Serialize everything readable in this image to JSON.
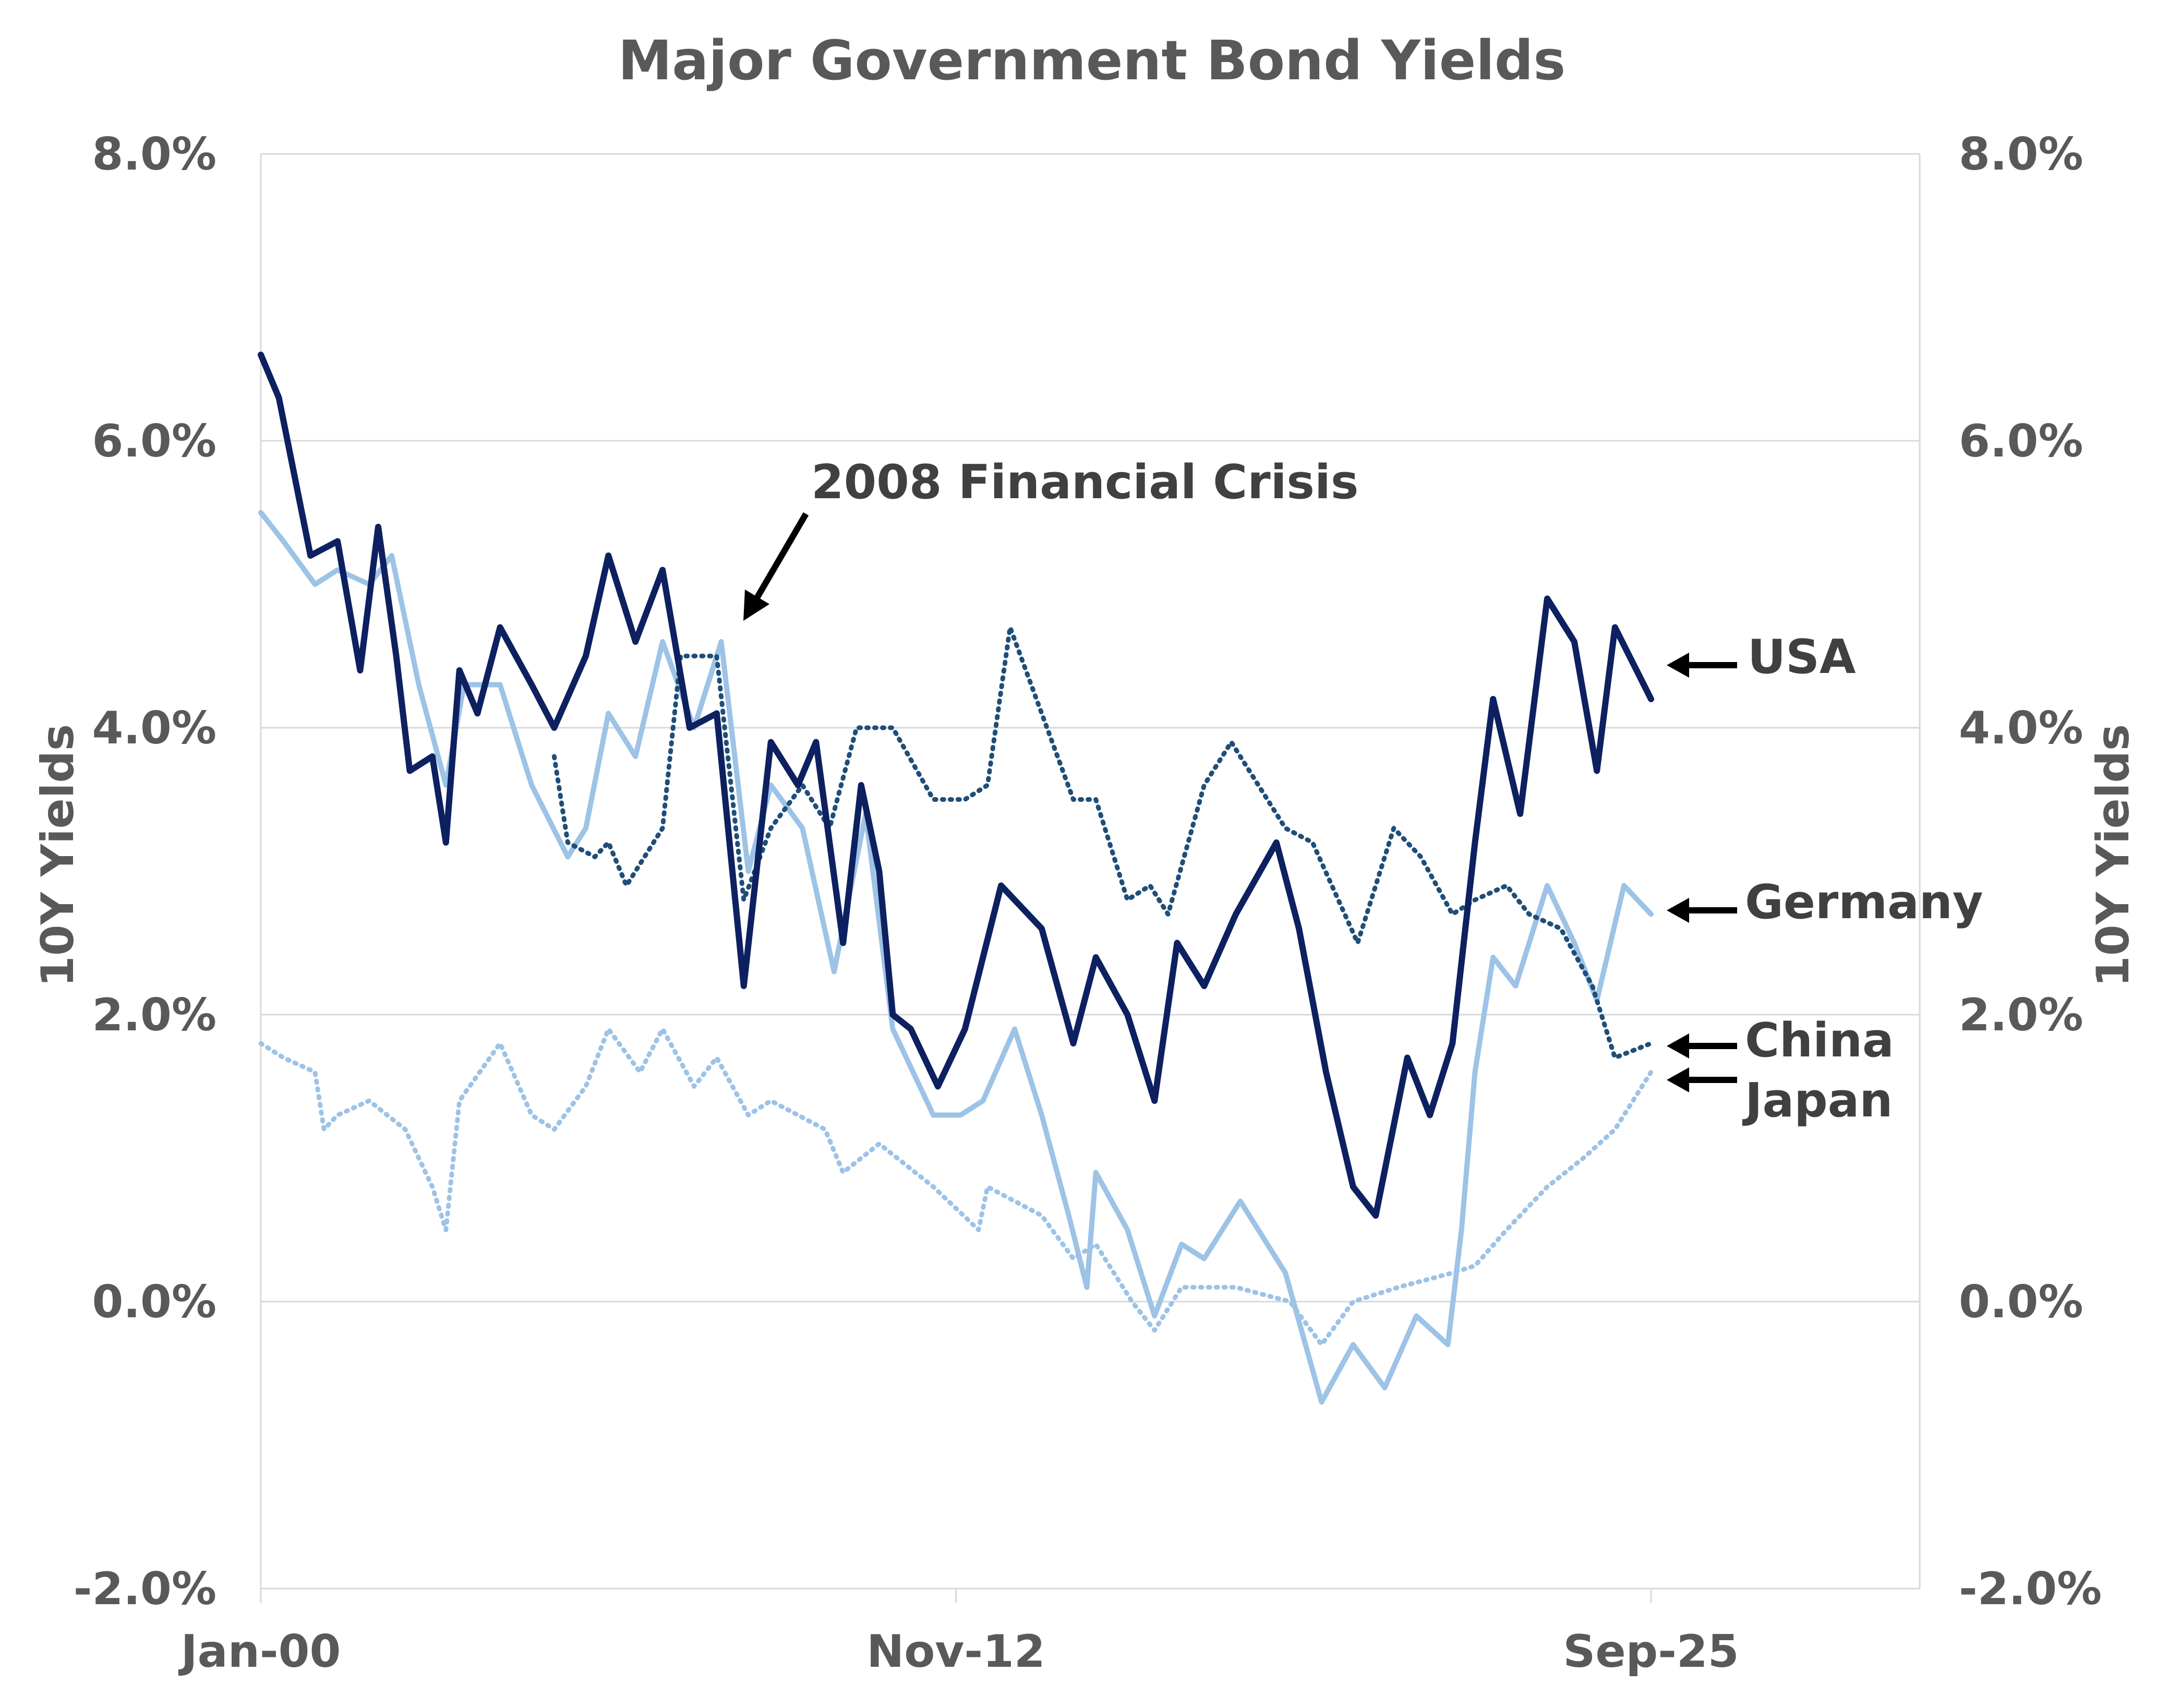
{
  "chart_data": {
    "type": "line",
    "title": "Major Government Bond Yields",
    "ylabel_left": "10Y Yields",
    "ylabel_right": "10Y Yields",
    "ylim": [
      -2.0,
      8.0
    ],
    "y_ticks": [
      "-2.0%",
      "0.0%",
      "2.0%",
      "4.0%",
      "6.0%",
      "8.0%"
    ],
    "x_ticks": [
      "Jan-00",
      "Nov-12",
      "Sep-25"
    ],
    "grid": true,
    "annotation": "2008 Financial Crisis",
    "series": [
      {
        "name": "USA",
        "color": "#0d2060",
        "style": "solid",
        "points": [
          [
            "2000-01",
            6.6
          ],
          [
            "2000-05",
            6.3
          ],
          [
            "2000-12",
            5.2
          ],
          [
            "2001-06",
            5.3
          ],
          [
            "2001-11",
            4.4
          ],
          [
            "2002-03",
            5.4
          ],
          [
            "2002-07",
            4.5
          ],
          [
            "2002-10",
            3.7
          ],
          [
            "2003-03",
            3.8
          ],
          [
            "2003-06",
            3.2
          ],
          [
            "2003-09",
            4.4
          ],
          [
            "2004-01",
            4.1
          ],
          [
            "2004-06",
            4.7
          ],
          [
            "2005-01",
            4.3
          ],
          [
            "2005-06",
            4.0
          ],
          [
            "2006-01",
            4.5
          ],
          [
            "2006-06",
            5.2
          ],
          [
            "2006-12",
            4.6
          ],
          [
            "2007-06",
            5.1
          ],
          [
            "2007-12",
            4.0
          ],
          [
            "2008-06",
            4.1
          ],
          [
            "2008-12",
            2.2
          ],
          [
            "2009-06",
            3.9
          ],
          [
            "2009-12",
            3.6
          ],
          [
            "2010-04",
            3.9
          ],
          [
            "2010-10",
            2.5
          ],
          [
            "2011-02",
            3.6
          ],
          [
            "2011-06",
            3.0
          ],
          [
            "2011-09",
            2.0
          ],
          [
            "2012-01",
            1.9
          ],
          [
            "2012-07",
            1.5
          ],
          [
            "2013-01",
            1.9
          ],
          [
            "2013-09",
            2.9
          ],
          [
            "2014-06",
            2.6
          ],
          [
            "2015-01",
            1.8
          ],
          [
            "2015-06",
            2.4
          ],
          [
            "2016-01",
            2.0
          ],
          [
            "2016-07",
            1.4
          ],
          [
            "2016-12",
            2.5
          ],
          [
            "2017-06",
            2.2
          ],
          [
            "2018-01",
            2.7
          ],
          [
            "2018-10",
            3.2
          ],
          [
            "2019-03",
            2.6
          ],
          [
            "2019-09",
            1.6
          ],
          [
            "2020-03",
            0.8
          ],
          [
            "2020-08",
            0.6
          ],
          [
            "2021-03",
            1.7
          ],
          [
            "2021-08",
            1.3
          ],
          [
            "2022-01",
            1.8
          ],
          [
            "2022-06",
            3.2
          ],
          [
            "2022-10",
            4.2
          ],
          [
            "2023-04",
            3.4
          ],
          [
            "2023-10",
            4.9
          ],
          [
            "2024-04",
            4.6
          ],
          [
            "2024-09",
            3.7
          ],
          [
            "2025-01",
            4.7
          ],
          [
            "2025-09",
            4.2
          ]
        ]
      },
      {
        "name": "Germany",
        "color": "#9dc3e6",
        "style": "solid",
        "points": [
          [
            "2000-01",
            5.5
          ],
          [
            "2000-06",
            5.3
          ],
          [
            "2001-01",
            5.0
          ],
          [
            "2001-06",
            5.1
          ],
          [
            "2002-01",
            5.0
          ],
          [
            "2002-06",
            5.2
          ],
          [
            "2002-12",
            4.3
          ],
          [
            "2003-06",
            3.6
          ],
          [
            "2003-10",
            4.3
          ],
          [
            "2004-06",
            4.3
          ],
          [
            "2005-01",
            3.6
          ],
          [
            "2005-09",
            3.1
          ],
          [
            "2006-01",
            3.3
          ],
          [
            "2006-06",
            4.1
          ],
          [
            "2006-12",
            3.8
          ],
          [
            "2007-06",
            4.6
          ],
          [
            "2008-01",
            4.0
          ],
          [
            "2008-07",
            4.6
          ],
          [
            "2009-01",
            3.0
          ],
          [
            "2009-06",
            3.6
          ],
          [
            "2010-01",
            3.3
          ],
          [
            "2010-08",
            2.3
          ],
          [
            "2011-03",
            3.4
          ],
          [
            "2011-09",
            1.9
          ],
          [
            "2012-06",
            1.3
          ],
          [
            "2012-12",
            1.3
          ],
          [
            "2013-05",
            1.4
          ],
          [
            "2013-12",
            1.9
          ],
          [
            "2014-06",
            1.3
          ],
          [
            "2014-12",
            0.6
          ],
          [
            "2015-04",
            0.1
          ],
          [
            "2015-06",
            0.9
          ],
          [
            "2016-01",
            0.5
          ],
          [
            "2016-07",
            -0.1
          ],
          [
            "2017-01",
            0.4
          ],
          [
            "2017-06",
            0.3
          ],
          [
            "2018-02",
            0.7
          ],
          [
            "2018-12",
            0.2
          ],
          [
            "2019-08",
            -0.7
          ],
          [
            "2020-03",
            -0.3
          ],
          [
            "2020-10",
            -0.6
          ],
          [
            "2021-05",
            -0.1
          ],
          [
            "2021-12",
            -0.3
          ],
          [
            "2022-03",
            0.5
          ],
          [
            "2022-06",
            1.6
          ],
          [
            "2022-10",
            2.4
          ],
          [
            "2023-03",
            2.2
          ],
          [
            "2023-10",
            2.9
          ],
          [
            "2024-04",
            2.5
          ],
          [
            "2024-09",
            2.1
          ],
          [
            "2025-03",
            2.9
          ],
          [
            "2025-09",
            2.7
          ]
        ]
      },
      {
        "name": "China",
        "color": "#1f4e79",
        "style": "dotted",
        "points": [
          [
            "2005-06",
            3.8
          ],
          [
            "2005-09",
            3.2
          ],
          [
            "2006-03",
            3.1
          ],
          [
            "2006-06",
            3.2
          ],
          [
            "2006-10",
            2.9
          ],
          [
            "2007-06",
            3.3
          ],
          [
            "2007-10",
            4.5
          ],
          [
            "2008-06",
            4.5
          ],
          [
            "2008-12",
            2.8
          ],
          [
            "2009-06",
            3.3
          ],
          [
            "2010-01",
            3.6
          ],
          [
            "2010-07",
            3.3
          ],
          [
            "2011-01",
            4.0
          ],
          [
            "2011-09",
            4.0
          ],
          [
            "2012-06",
            3.5
          ],
          [
            "2013-01",
            3.5
          ],
          [
            "2013-06",
            3.6
          ],
          [
            "2013-11",
            4.7
          ],
          [
            "2014-06",
            4.1
          ],
          [
            "2015-01",
            3.5
          ],
          [
            "2015-06",
            3.5
          ],
          [
            "2016-01",
            2.8
          ],
          [
            "2016-06",
            2.9
          ],
          [
            "2016-10",
            2.7
          ],
          [
            "2017-06",
            3.6
          ],
          [
            "2017-12",
            3.9
          ],
          [
            "2018-06",
            3.6
          ],
          [
            "2018-12",
            3.3
          ],
          [
            "2019-06",
            3.2
          ],
          [
            "2020-04",
            2.5
          ],
          [
            "2020-12",
            3.3
          ],
          [
            "2021-06",
            3.1
          ],
          [
            "2022-01",
            2.7
          ],
          [
            "2022-06",
            2.8
          ],
          [
            "2023-01",
            2.9
          ],
          [
            "2023-06",
            2.7
          ],
          [
            "2024-01",
            2.6
          ],
          [
            "2024-08",
            2.2
          ],
          [
            "2025-01",
            1.7
          ],
          [
            "2025-09",
            1.8
          ]
        ]
      },
      {
        "name": "Japan",
        "color": "#9dc3e6",
        "style": "dotted",
        "points": [
          [
            "2000-01",
            1.8
          ],
          [
            "2000-06",
            1.7
          ],
          [
            "2001-01",
            1.6
          ],
          [
            "2001-03",
            1.2
          ],
          [
            "2001-06",
            1.3
          ],
          [
            "2002-01",
            1.4
          ],
          [
            "2002-09",
            1.2
          ],
          [
            "2003-03",
            0.8
          ],
          [
            "2003-06",
            0.5
          ],
          [
            "2003-09",
            1.4
          ],
          [
            "2004-06",
            1.8
          ],
          [
            "2005-01",
            1.3
          ],
          [
            "2005-06",
            1.2
          ],
          [
            "2006-01",
            1.5
          ],
          [
            "2006-06",
            1.9
          ],
          [
            "2007-01",
            1.6
          ],
          [
            "2007-06",
            1.9
          ],
          [
            "2008-01",
            1.5
          ],
          [
            "2008-06",
            1.7
          ],
          [
            "2009-01",
            1.3
          ],
          [
            "2009-06",
            1.4
          ],
          [
            "2010-06",
            1.2
          ],
          [
            "2010-10",
            0.9
          ],
          [
            "2011-06",
            1.1
          ],
          [
            "2012-06",
            0.8
          ],
          [
            "2013-04",
            0.5
          ],
          [
            "2013-06",
            0.8
          ],
          [
            "2014-06",
            0.6
          ],
          [
            "2015-01",
            0.3
          ],
          [
            "2015-06",
            0.4
          ],
          [
            "2016-02",
            0.0
          ],
          [
            "2016-07",
            -0.2
          ],
          [
            "2017-01",
            0.1
          ],
          [
            "2018-01",
            0.1
          ],
          [
            "2019-01",
            0.0
          ],
          [
            "2019-08",
            -0.3
          ],
          [
            "2020-03",
            0.0
          ],
          [
            "2021-01",
            0.1
          ],
          [
            "2022-01",
            0.2
          ],
          [
            "2022-06",
            0.25
          ],
          [
            "2023-01",
            0.5
          ],
          [
            "2023-10",
            0.8
          ],
          [
            "2024-06",
            1.0
          ],
          [
            "2025-01",
            1.2
          ],
          [
            "2025-09",
            1.6
          ]
        ]
      }
    ]
  }
}
